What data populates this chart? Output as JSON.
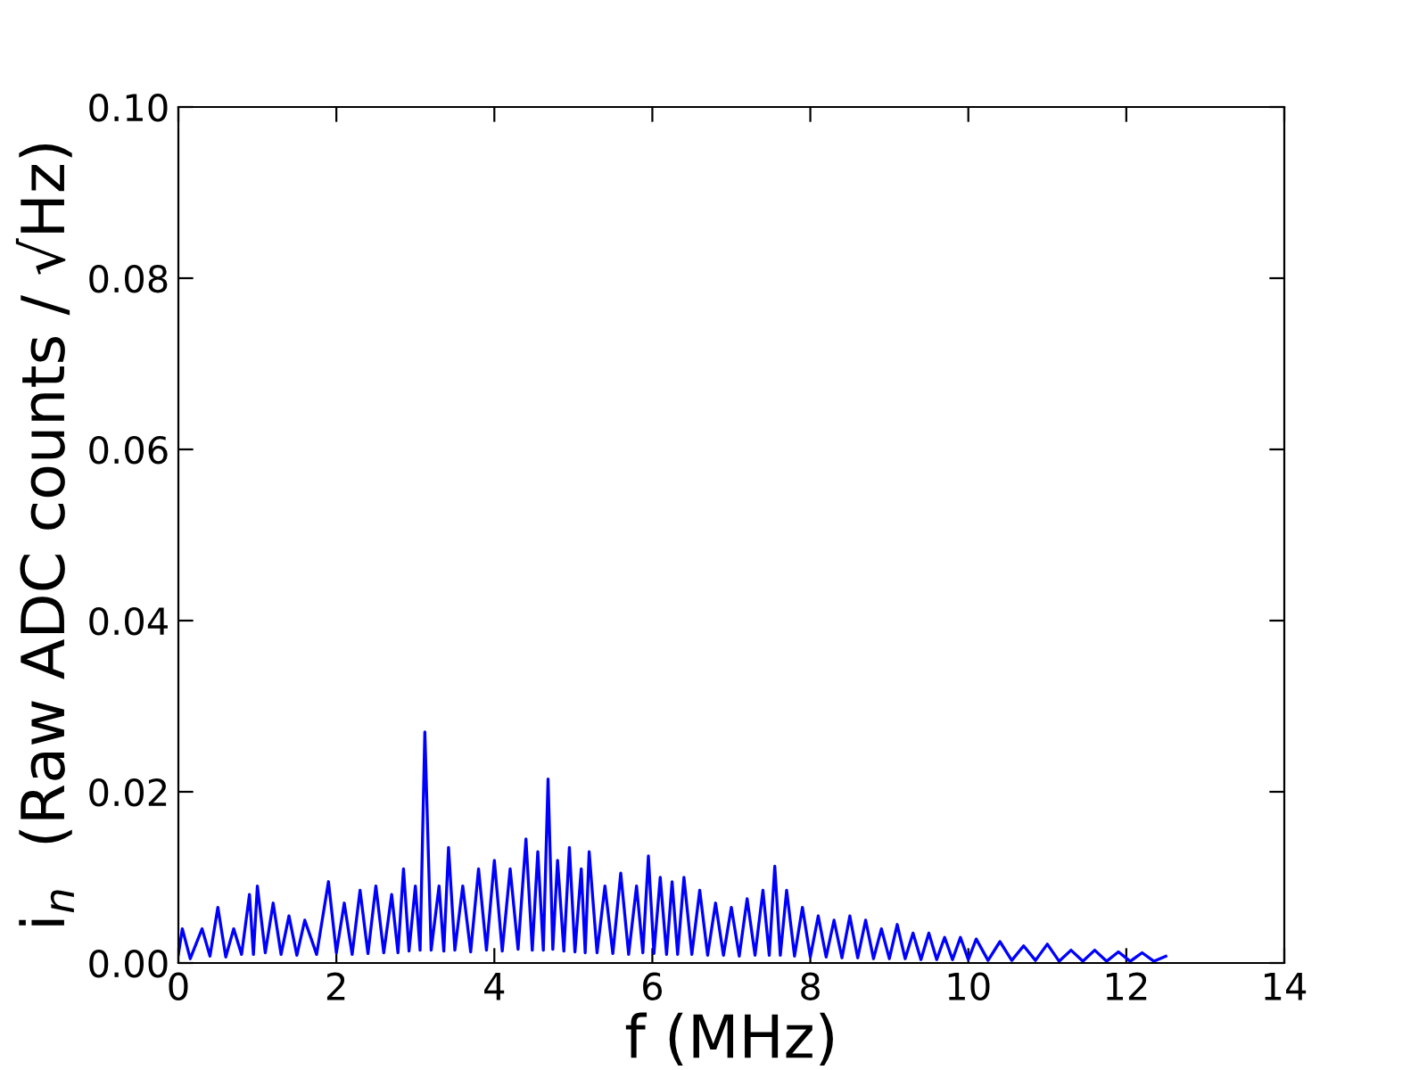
{
  "chart_data": {
    "type": "line",
    "xlabel": "f (MHz)",
    "ylabel": "i$_{n}$  (Raw ADC counts / √Hz)",
    "x": [
      0.0,
      0.05,
      0.15,
      0.3,
      0.4,
      0.5,
      0.6,
      0.7,
      0.8,
      0.9,
      0.95,
      1.0,
      1.1,
      1.2,
      1.3,
      1.4,
      1.5,
      1.6,
      1.75,
      1.9,
      2.0,
      2.1,
      2.2,
      2.3,
      2.4,
      2.5,
      2.6,
      2.7,
      2.78,
      2.85,
      2.92,
      3.0,
      3.06,
      3.12,
      3.2,
      3.3,
      3.36,
      3.42,
      3.5,
      3.6,
      3.7,
      3.8,
      3.9,
      4.0,
      4.1,
      4.2,
      4.3,
      4.4,
      4.48,
      4.55,
      4.62,
      4.68,
      4.74,
      4.8,
      4.88,
      4.95,
      5.02,
      5.1,
      5.15,
      5.2,
      5.3,
      5.4,
      5.5,
      5.6,
      5.7,
      5.8,
      5.88,
      5.95,
      6.02,
      6.1,
      6.18,
      6.25,
      6.32,
      6.4,
      6.5,
      6.6,
      6.7,
      6.8,
      6.9,
      7.0,
      7.1,
      7.2,
      7.3,
      7.4,
      7.48,
      7.55,
      7.62,
      7.7,
      7.8,
      7.9,
      8.0,
      8.1,
      8.2,
      8.3,
      8.4,
      8.5,
      8.6,
      8.7,
      8.8,
      8.9,
      9.0,
      9.1,
      9.2,
      9.3,
      9.4,
      9.5,
      9.6,
      9.7,
      9.8,
      9.9,
      10.0,
      10.1,
      10.25,
      10.4,
      10.55,
      10.7,
      10.85,
      11.0,
      11.15,
      11.3,
      11.45,
      11.6,
      11.75,
      11.9,
      12.05,
      12.2,
      12.35,
      12.5
    ],
    "values": [
      0.001,
      0.004,
      0.0005,
      0.004,
      0.0008,
      0.0065,
      0.0007,
      0.004,
      0.001,
      0.008,
      0.001,
      0.009,
      0.0012,
      0.007,
      0.001,
      0.0055,
      0.0009,
      0.005,
      0.001,
      0.0095,
      0.0012,
      0.007,
      0.001,
      0.0085,
      0.0011,
      0.009,
      0.0012,
      0.008,
      0.0012,
      0.011,
      0.0014,
      0.009,
      0.0015,
      0.027,
      0.0015,
      0.009,
      0.0014,
      0.0135,
      0.0015,
      0.009,
      0.0013,
      0.011,
      0.0015,
      0.012,
      0.0014,
      0.011,
      0.0016,
      0.0145,
      0.0015,
      0.013,
      0.0015,
      0.0215,
      0.0016,
      0.012,
      0.0014,
      0.0135,
      0.0013,
      0.011,
      0.0012,
      0.013,
      0.0012,
      0.009,
      0.0011,
      0.0105,
      0.001,
      0.009,
      0.0012,
      0.0125,
      0.0011,
      0.01,
      0.001,
      0.0095,
      0.001,
      0.01,
      0.001,
      0.0085,
      0.0009,
      0.007,
      0.0009,
      0.0065,
      0.0008,
      0.0075,
      0.0009,
      0.0085,
      0.0009,
      0.0113,
      0.0009,
      0.0085,
      0.0008,
      0.0065,
      0.0007,
      0.0055,
      0.0007,
      0.005,
      0.0006,
      0.0055,
      0.0006,
      0.005,
      0.0005,
      0.004,
      0.0005,
      0.0045,
      0.0005,
      0.0035,
      0.0004,
      0.0035,
      0.0004,
      0.003,
      0.0004,
      0.003,
      0.0004,
      0.0028,
      0.0003,
      0.0025,
      0.0003,
      0.002,
      0.0003,
      0.0022,
      0.0002,
      0.0015,
      0.0002,
      0.0015,
      0.0002,
      0.0013,
      0.0002,
      0.0012,
      0.0002,
      0.0008
    ],
    "color": "#0000ff",
    "xlim": [
      0,
      14
    ],
    "xticks": [
      0,
      2,
      4,
      6,
      8,
      10,
      12,
      14
    ],
    "ylim": [
      0,
      0.1
    ],
    "yticks": [
      {
        "value": 0,
        "label": "0.00"
      },
      {
        "value": 0.02,
        "label": "0.02"
      },
      {
        "value": 0.04,
        "label": "0.04"
      },
      {
        "value": 0.06,
        "label": "0.06"
      },
      {
        "value": 0.08,
        "label": "0.08"
      },
      {
        "value": 0.1,
        "label": "0.10"
      }
    ],
    "grid": false,
    "legend": false
  }
}
